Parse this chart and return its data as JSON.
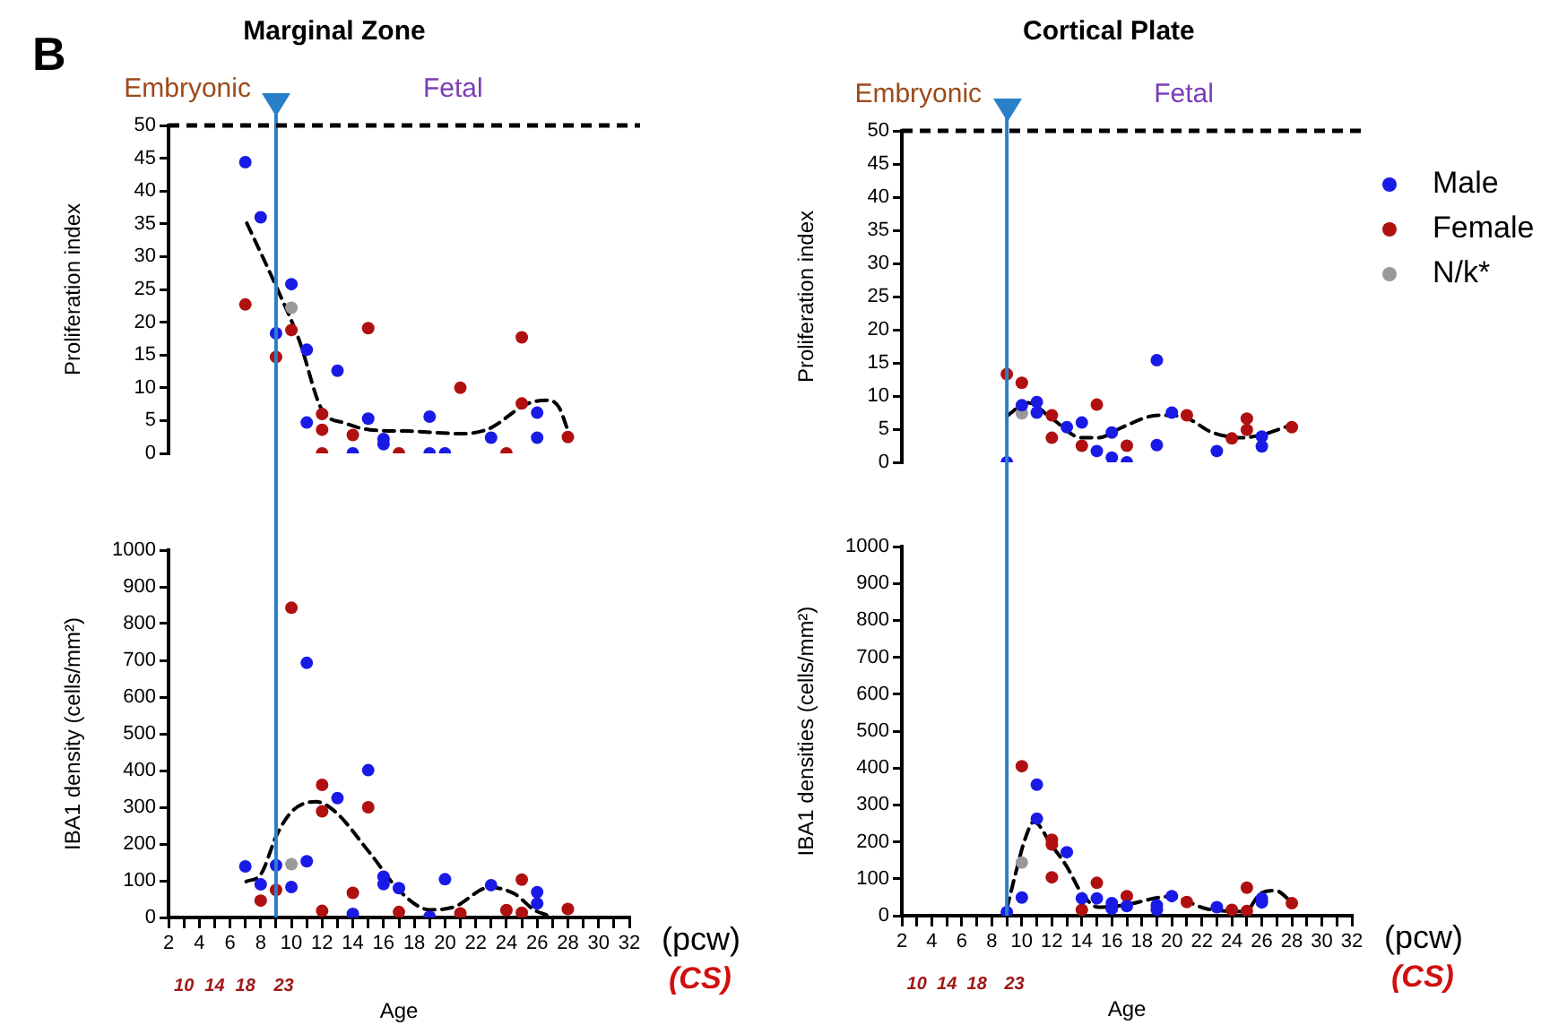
{
  "chart_data": [
    {
      "type": "scatter",
      "title": "Marginal Zone",
      "ylabel": "Proliferation index",
      "xlim": [
        2,
        32
      ],
      "ylim": [
        0,
        50
      ],
      "yticks": [
        0,
        5,
        10,
        15,
        20,
        25,
        30,
        35,
        40,
        45,
        50
      ],
      "tick_labels": "y",
      "marker": "circle",
      "annotations": [
        "B",
        "Embryonic",
        "Fetal"
      ],
      "ref_lines": [
        {
          "axis": "x",
          "value": 9,
          "color": "#2a7fc9"
        },
        {
          "axis": "y",
          "value": 50,
          "color": "#000000",
          "line_style": "dashed"
        }
      ],
      "series": [
        {
          "color": "#1a1ae6",
          "x": [
            7,
            8,
            9,
            10,
            11,
            11,
            13,
            14,
            15,
            16,
            16,
            19,
            19,
            20,
            23,
            26,
            26
          ],
          "values": [
            44.4,
            36.0,
            18.3,
            25.8,
            15.8,
            4.7,
            12.6,
            0,
            5.3,
            2.2,
            1.4,
            5.6,
            0,
            0,
            2.4,
            6.2,
            2.4
          ]
        },
        {
          "color": "#b01010",
          "x": [
            7,
            9,
            10,
            12,
            12,
            12,
            14,
            15,
            17,
            21,
            24,
            25,
            25,
            28
          ],
          "values": [
            22.7,
            14.7,
            18.8,
            6.0,
            3.6,
            0,
            2.8,
            19.1,
            0,
            10.0,
            0,
            17.7,
            7.6,
            2.5
          ]
        },
        {
          "color": "#999999",
          "x": [
            10
          ],
          "values": [
            22.2
          ]
        },
        {
          "type": "line",
          "color": "#000000",
          "line_style": "dashed",
          "marker": "none",
          "x": [
            7.1,
            9,
            10.5,
            12,
            13.5,
            15.1,
            17.5,
            21.2,
            22.9,
            25.3,
            26.6,
            27.4,
            28.1
          ],
          "values": [
            35.1,
            25.5,
            17.3,
            6.6,
            4.6,
            3.6,
            3.4,
            3.0,
            3.8,
            7.5,
            8.1,
            7.1,
            2.8
          ]
        }
      ]
    },
    {
      "type": "scatter",
      "xlabel": "Age",
      "x2label": "(CS)",
      "ylabel": "IBA1 density (cells/mm²)",
      "xlim": [
        2,
        32
      ],
      "xticks": [
        2,
        {
          "value": 3,
          "label": null
        },
        4,
        {
          "value": 5,
          "label": null
        },
        6,
        {
          "value": 7,
          "label": null
        },
        8,
        {
          "value": 9,
          "label": null
        },
        10,
        {
          "value": 11,
          "label": null
        },
        12,
        {
          "value": 13,
          "label": null
        },
        14,
        {
          "value": 15,
          "label": null
        },
        16,
        {
          "value": 17,
          "label": null
        },
        18,
        {
          "value": 19,
          "label": null
        },
        20,
        {
          "value": 21,
          "label": null
        },
        22,
        {
          "value": 23,
          "label": null
        },
        24,
        {
          "value": 25,
          "label": null
        },
        26,
        {
          "value": 27,
          "label": null
        },
        28,
        {
          "value": 29,
          "label": null
        },
        30,
        {
          "value": 31,
          "label": null
        },
        32
      ],
      "x2lim": [
        8,
        68
      ],
      "x2ticks": [
        10,
        14,
        18,
        23
      ],
      "ylim": [
        0,
        1000
      ],
      "yticks": [
        0,
        100,
        200,
        300,
        400,
        500,
        600,
        700,
        800,
        900,
        1000
      ],
      "marker": "circle",
      "annotations": [
        "(pcw)"
      ],
      "ref_lines": [
        {
          "axis": "x",
          "value": 9,
          "color": "#2a7fc9"
        }
      ],
      "series": [
        {
          "color": "#1a1ae6",
          "x": [
            7,
            8,
            9,
            10,
            11,
            11,
            13,
            14,
            15,
            16,
            16,
            17,
            19,
            20,
            23,
            26,
            26
          ],
          "values": [
            139,
            90,
            142,
            83,
            693,
            153,
            325,
            10,
            401,
            111,
            91,
            80,
            2,
            104,
            88,
            69,
            38
          ]
        },
        {
          "color": "#b01010",
          "x": [
            8,
            9,
            10,
            12,
            12,
            12,
            14,
            15,
            17,
            21,
            24,
            25,
            25,
            28
          ],
          "values": [
            46,
            75,
            843,
            361,
            289,
            18,
            67,
            300,
            15,
            11,
            20,
            103,
            13,
            23
          ]
        },
        {
          "color": "#999999",
          "x": [
            10
          ],
          "values": [
            145
          ]
        },
        {
          "type": "line",
          "color": "#000000",
          "line_style": "dashed",
          "marker": "none",
          "x": [
            7.06,
            8,
            9.05,
            10.06,
            11.6,
            12.8,
            15.1,
            17.1,
            19,
            20.6,
            22.9,
            24.5,
            25.8,
            27.1
          ],
          "values": [
            98,
            117,
            225,
            290,
            315,
            290,
            176,
            70,
            21,
            29,
            82,
            65,
            21,
            0
          ]
        }
      ]
    },
    {
      "type": "scatter",
      "title": "Cortical Plate",
      "ylabel": "Proliferation index",
      "xlim": [
        2,
        32
      ],
      "ylim": [
        0,
        50
      ],
      "yticks": [
        0,
        5,
        10,
        15,
        20,
        25,
        30,
        35,
        40,
        45,
        50
      ],
      "tick_labels": "y",
      "marker": "circle",
      "legend": "right",
      "annotations": [
        "Embryonic",
        "Fetal"
      ],
      "ref_lines": [
        {
          "axis": "x",
          "value": 9,
          "color": "#2a7fc9"
        },
        {
          "axis": "y",
          "value": 50,
          "color": "#000000",
          "line_style": "dashed"
        }
      ],
      "series": [
        {
          "name": "Male",
          "color": "#1a1ae6",
          "x": [
            9,
            10,
            11,
            11,
            13,
            14,
            15,
            16,
            16,
            17,
            19,
            19,
            20,
            23,
            26,
            26
          ],
          "values": [
            0,
            8.6,
            9.1,
            7.5,
            5.3,
            6.0,
            1.7,
            4.5,
            0.7,
            0,
            15.4,
            2.6,
            7.5,
            1.7,
            3.9,
            2.4
          ]
        },
        {
          "name": "Female",
          "color": "#b01010",
          "x": [
            9,
            10,
            12,
            12,
            14,
            15,
            17,
            21,
            24,
            25,
            25,
            28
          ],
          "values": [
            13.3,
            12.0,
            7.1,
            3.7,
            2.5,
            8.7,
            2.5,
            7.1,
            3.6,
            6.6,
            4.9,
            5.3
          ]
        },
        {
          "name": "N/k*",
          "color": "#999999",
          "x": [
            10
          ],
          "values": [
            7.4
          ]
        },
        {
          "type": "line",
          "color": "#000000",
          "line_style": "dashed",
          "marker": "none",
          "x": [
            9,
            10.4,
            12,
            14,
            15.1,
            16.7,
            19.1,
            20.7,
            22.7,
            24.7,
            25.9,
            27.8
          ],
          "values": [
            7.0,
            9.0,
            6.6,
            3.7,
            3.7,
            5.3,
            7.1,
            6.9,
            4.5,
            3.7,
            4.1,
            5.5
          ]
        }
      ]
    },
    {
      "type": "scatter",
      "xlabel": "Age",
      "x2label": "(CS)",
      "ylabel": "IBA1 densities (cells/mm²)",
      "xlim": [
        2,
        32
      ],
      "xticks": [
        2,
        {
          "value": 3,
          "label": null
        },
        4,
        {
          "value": 5,
          "label": null
        },
        6,
        {
          "value": 7,
          "label": null
        },
        8,
        {
          "value": 9,
          "label": null
        },
        10,
        {
          "value": 11,
          "label": null
        },
        12,
        {
          "value": 13,
          "label": null
        },
        14,
        {
          "value": 15,
          "label": null
        },
        16,
        {
          "value": 17,
          "label": null
        },
        18,
        {
          "value": 19,
          "label": null
        },
        20,
        {
          "value": 21,
          "label": null
        },
        22,
        {
          "value": 23,
          "label": null
        },
        24,
        {
          "value": 25,
          "label": null
        },
        26,
        {
          "value": 27,
          "label": null
        },
        28,
        {
          "value": 29,
          "label": null
        },
        30,
        {
          "value": 31,
          "label": null
        },
        32
      ],
      "x2lim": [
        8,
        68
      ],
      "x2ticks": [
        10,
        14,
        18,
        23
      ],
      "ylim": [
        0,
        1000
      ],
      "yticks": [
        0,
        100,
        200,
        300,
        400,
        500,
        600,
        700,
        800,
        900,
        1000
      ],
      "marker": "circle",
      "annotations": [
        "(pcw)"
      ],
      "ref_lines": [
        {
          "axis": "x",
          "value": 9,
          "color": "#2a7fc9"
        }
      ],
      "series": [
        {
          "color": "#1a1ae6",
          "x": [
            9,
            10,
            11,
            11,
            13,
            14,
            15,
            16,
            16,
            17,
            19,
            19,
            20,
            23,
            26,
            26
          ],
          "values": [
            10,
            49,
            355,
            263,
            172,
            47,
            47,
            34,
            19,
            26,
            28,
            16,
            53,
            23,
            47,
            36
          ]
        },
        {
          "color": "#b01010",
          "x": [
            10,
            12,
            12,
            12,
            14,
            15,
            17,
            21,
            24,
            25,
            25,
            28
          ],
          "values": [
            405,
            206,
            193,
            104,
            16,
            89,
            53,
            37,
            16,
            76,
            13,
            34
          ]
        },
        {
          "color": "#999999",
          "x": [
            10
          ],
          "values": [
            144
          ]
        },
        {
          "type": "line",
          "color": "#000000",
          "line_style": "dashed",
          "marker": "none",
          "x": [
            9,
            9.6,
            10.2,
            10.8,
            12,
            13,
            14,
            15.1,
            16.7,
            19.9,
            22.3,
            24.9,
            25.9,
            26.9,
            28
          ],
          "values": [
            19,
            117,
            206,
            254,
            190,
            133,
            60,
            23,
            28,
            52,
            19,
            11,
            60,
            68,
            36
          ]
        }
      ]
    }
  ]
}
